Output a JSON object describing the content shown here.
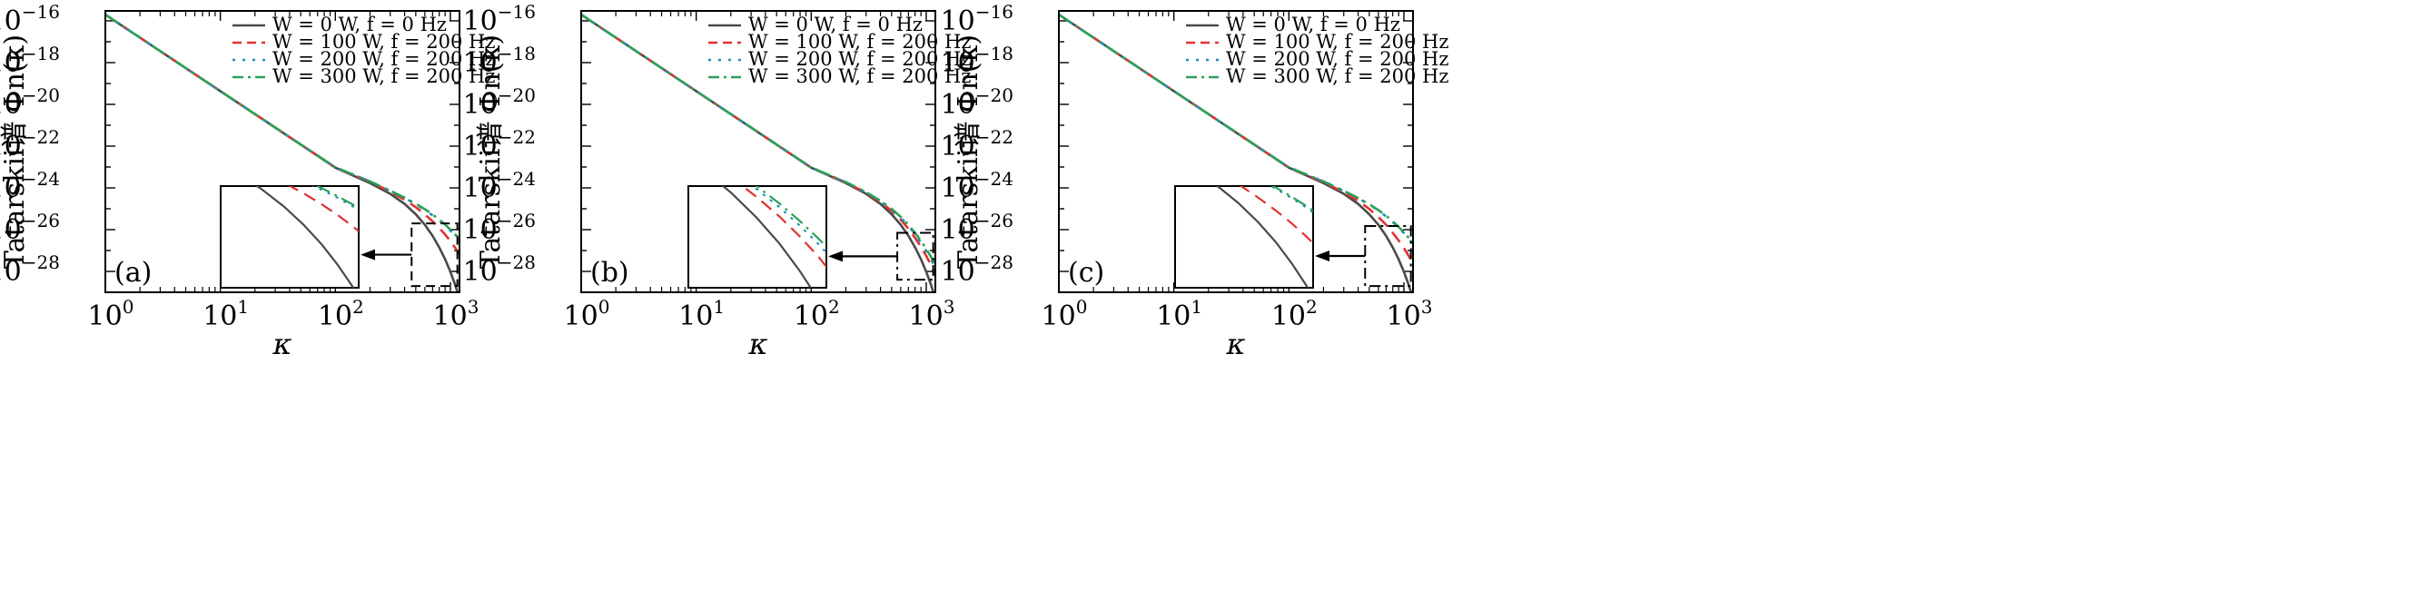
{
  "colors": {
    "w0": "#4a4a4a",
    "w100": "#e03232",
    "w200": "#1f8fb4",
    "w300": "#2ba05a",
    "axis": "#000000"
  },
  "chart_data": [
    {
      "type": "line",
      "panel_label": "(a)",
      "xlabel": "κ",
      "ylabel": "Tatarskii谱 Φn(κ)",
      "xscale": "log",
      "yscale": "log",
      "xlim": [
        1,
        1200
      ],
      "ylim": [
        1e-29,
        3e-16
      ],
      "x_ticks": [
        "10⁰",
        "10¹",
        "10²",
        "10³"
      ],
      "y_ticks": [
        "10⁻¹⁶",
        "10⁻¹⁸",
        "10⁻²⁰",
        "10⁻²²",
        "10⁻²⁴",
        "10⁻²⁶",
        "10⁻²⁸"
      ],
      "legend": [
        "W = 0 W, f = 0 Hz",
        "W = 100 W, f = 200 Hz",
        "W = 200 W, f = 200 Hz",
        "W = 300 W, f = 200 Hz"
      ],
      "legend_position": "top-right",
      "x": [
        1,
        10,
        100,
        200,
        300,
        400,
        500,
        600,
        700,
        800,
        900,
        1000,
        1100,
        1200
      ],
      "series": [
        {
          "name": "W = 0 W, f = 0 Hz",
          "values": [
            2e-16,
            4.3e-20,
            9.3e-24,
            1.7e-24,
            5.2e-25,
            1.7e-25,
            5.5e-26,
            1.7e-26,
            5e-27,
            1.4e-27,
            3.8e-28,
            9.5e-29,
            2.3e-29,
            5e-30
          ]
        },
        {
          "name": "W = 100 W, f = 200 Hz",
          "values": [
            2e-16,
            4.3e-20,
            9.5e-24,
            2e-24,
            6.6e-25,
            2.7e-25,
            1.2e-25,
            5.3e-26,
            2.5e-26,
            1.2e-26,
            5.8e-27,
            2.8e-27,
            1.35e-27,
            6.5e-28
          ]
        },
        {
          "name": "W = 200 W, f = 200 Hz",
          "values": [
            2e-16,
            4.3e-20,
            9.6e-24,
            2.05e-24,
            7.2e-25,
            3.3e-25,
            1.65e-25,
            8.8e-26,
            4.8e-26,
            2.7e-26,
            1.55e-26,
            9e-27,
            5.2e-27,
            3e-27
          ]
        },
        {
          "name": "W = 300 W, f = 200 Hz",
          "values": [
            2e-16,
            4.3e-20,
            9.6e-24,
            2.05e-24,
            7.3e-25,
            3.4e-25,
            1.75e-25,
            9.5e-26,
            5.3e-26,
            3e-26,
            1.75e-26,
            1e-26,
            5.9e-27,
            3.4e-27
          ]
        }
      ],
      "zoom_region": {
        "x": [
          460,
          1150
        ],
        "y": [
          2e-29,
          2e-26
        ]
      },
      "inset_box_style": "dashed"
    },
    {
      "type": "line",
      "panel_label": "(b)",
      "xlabel": "κ",
      "ylabel": "Tatarskii谱 Φn(κ)",
      "xscale": "log",
      "yscale": "log",
      "xlim": [
        1,
        1200
      ],
      "ylim": [
        1e-29,
        3e-16
      ],
      "x_ticks": [
        "10⁰",
        "10¹",
        "10²",
        "10³"
      ],
      "y_ticks": [
        "10⁻¹⁶",
        "10⁻¹⁸",
        "10⁻²⁰",
        "10⁻²²",
        "10⁻²⁴",
        "10⁻²⁶",
        "10⁻²⁸"
      ],
      "legend": [
        "W = 0 W, f = 0 Hz",
        "W = 100 W, f = 200 Hz",
        "W = 200 W, f = 200 Hz",
        "W = 300 W, f = 200 Hz"
      ],
      "legend_position": "top-right",
      "x": [
        1,
        10,
        100,
        200,
        300,
        400,
        500,
        600,
        700,
        800,
        900,
        1000,
        1100,
        1200
      ],
      "series": [
        {
          "name": "W = 0 W, f = 0 Hz",
          "values": [
            2e-16,
            4.3e-20,
            9.3e-24,
            1.7e-24,
            5.2e-25,
            1.7e-25,
            5.5e-26,
            1.7e-26,
            5e-27,
            1.4e-27,
            3.8e-28,
            9.5e-29,
            2.3e-29,
            5e-30
          ]
        },
        {
          "name": "W = 100 W, f = 200 Hz",
          "values": [
            2e-16,
            4.3e-20,
            9.4e-24,
            1.8e-24,
            5.8e-25,
            2.1e-25,
            8e-26,
            3e-26,
            1.1e-26,
            4e-27,
            1.5e-27,
            5.5e-28,
            2e-28,
            7e-29
          ]
        },
        {
          "name": "W = 200 W, f = 200 Hz",
          "values": [
            2e-16,
            4.3e-20,
            9.5e-24,
            1.85e-24,
            6.1e-25,
            2.3e-25,
            9.2e-26,
            3.7e-26,
            1.5e-26,
            6e-27,
            2.4e-27,
            9.5e-28,
            3.8e-28,
            1.5e-28
          ]
        },
        {
          "name": "W = 300 W, f = 200 Hz",
          "values": [
            2e-16,
            4.3e-20,
            9.5e-24,
            1.9e-24,
            6.3e-25,
            2.4e-25,
            1e-25,
            4.1e-26,
            1.7e-26,
            7e-27,
            2.9e-27,
            1.2e-27,
            5e-28,
            2.1e-28
          ]
        }
      ],
      "zoom_region": {
        "x": [
          560,
          1150
        ],
        "y": [
          4e-29,
          7e-27
        ]
      },
      "inset_box_style": "dash-dot"
    },
    {
      "type": "line",
      "panel_label": "(c)",
      "xlabel": "κ",
      "ylabel": "Tatarskii谱 Φn(κ)",
      "xscale": "log",
      "yscale": "log",
      "xlim": [
        1,
        1200
      ],
      "ylim": [
        1e-29,
        3e-16
      ],
      "x_ticks": [
        "10⁰",
        "10¹",
        "10²",
        "10³"
      ],
      "y_ticks": [
        "10⁻¹⁶",
        "10⁻¹⁸",
        "10⁻²⁰",
        "10⁻²²",
        "10⁻²⁴",
        "10⁻²⁶",
        "10⁻²⁸"
      ],
      "legend": [
        "W = 0 W, f = 0 Hz",
        "W = 100 W, f = 200 Hz",
        "W = 200 W, f = 200 Hz",
        "W = 300 W, f = 200 Hz"
      ],
      "legend_position": "top-right",
      "x": [
        1,
        10,
        100,
        200,
        300,
        400,
        500,
        600,
        700,
        800,
        900,
        1000,
        1100,
        1200
      ],
      "series": [
        {
          "name": "W = 0 W, f = 0 Hz",
          "values": [
            2e-16,
            4.3e-20,
            9.3e-24,
            1.7e-24,
            5.2e-25,
            1.7e-25,
            5.5e-26,
            1.7e-26,
            5e-27,
            1.4e-27,
            3.8e-28,
            9.5e-29,
            2.3e-29,
            5e-30
          ]
        },
        {
          "name": "W = 100 W, f = 200 Hz",
          "values": [
            2e-16,
            4.3e-20,
            9.4e-24,
            1.9e-24,
            6.2e-25,
            2.4e-25,
            9.8e-26,
            4e-26,
            1.7e-26,
            7e-27,
            3e-27,
            1.3e-27,
            5.6e-28,
            2.4e-28
          ]
        },
        {
          "name": "W = 200 W, f = 200 Hz",
          "values": [
            2e-16,
            4.3e-20,
            9.6e-24,
            2.05e-24,
            7.2e-25,
            3.2e-25,
            1.6e-25,
            8.2e-26,
            4.3e-26,
            2.3e-26,
            1.25e-26,
            6.8e-27,
            3.7e-27,
            2e-27
          ]
        },
        {
          "name": "W = 300 W, f = 200 Hz",
          "values": [
            2e-16,
            4.3e-20,
            9.6e-24,
            2.05e-24,
            7.3e-25,
            3.3e-25,
            1.65e-25,
            8.6e-26,
            4.6e-26,
            2.5e-26,
            1.35e-26,
            7.4e-27,
            4.1e-27,
            2.3e-27
          ]
        }
      ],
      "zoom_region": {
        "x": [
          460,
          1150
        ],
        "y": [
          2e-29,
          1.5e-26
        ]
      },
      "inset_box_style": "dash-dot"
    }
  ]
}
